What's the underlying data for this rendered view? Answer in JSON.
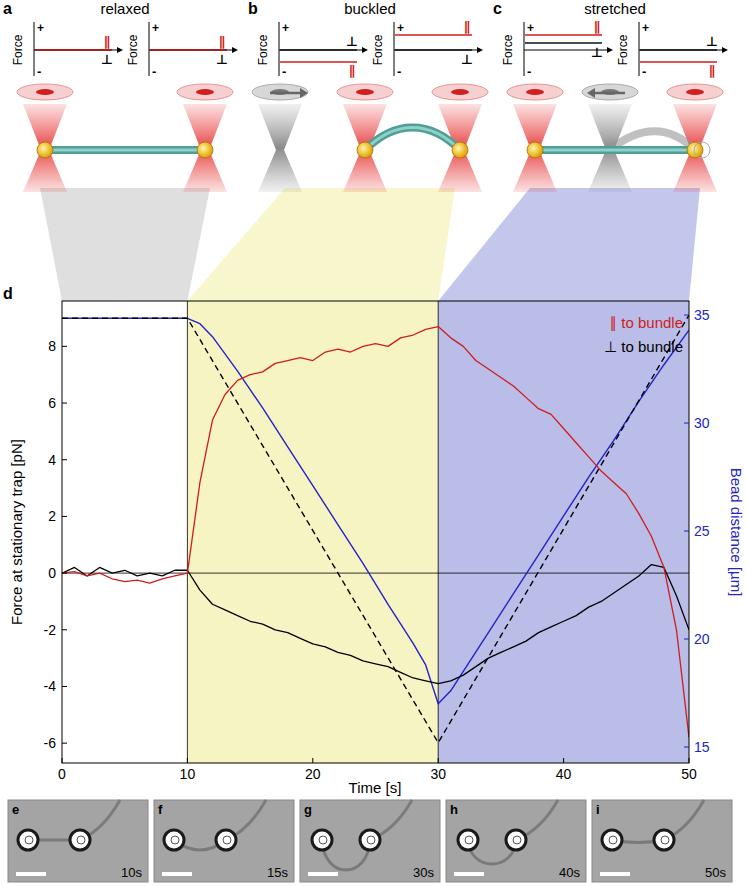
{
  "schematic": {
    "force_label": "Force",
    "plus": "+",
    "minus": "-",
    "par": "∥",
    "perp": "⊥",
    "panels": [
      {
        "letter": "a",
        "title": "relaxed",
        "color": "#d9d9d9"
      },
      {
        "letter": "b",
        "title": "buckled",
        "color": "#f7f4c4"
      },
      {
        "letter": "c",
        "title": "stretched",
        "color": "#b9bde8"
      }
    ]
  },
  "chart_data": {
    "type": "line",
    "letter": "d",
    "xlabel": "Time [s]",
    "ylabel": "Force at stationary trap [pN]",
    "y2label": "Bead distance [µm]",
    "xlim": [
      0,
      50
    ],
    "xticks": [
      0,
      10,
      20,
      30,
      40,
      50
    ],
    "ylim": [
      -6.7,
      9.6
    ],
    "yticks": [
      -6,
      -4,
      -2,
      0,
      2,
      4,
      6,
      8
    ],
    "y2lim": [
      14.26,
      35.65
    ],
    "y2ticks": [
      15,
      20,
      25,
      30,
      35
    ],
    "regions": [
      {
        "x": [
          10,
          30
        ],
        "color": "#f7f4c4"
      },
      {
        "x": [
          30,
          50
        ],
        "color": "#b9bde8"
      }
    ],
    "legend": "upper right",
    "series": [
      {
        "name": "∥ to bundle",
        "color": "#d01c1c",
        "line_style": "solid",
        "x": [
          0,
          1,
          2,
          3,
          4,
          5,
          6,
          7,
          8,
          9,
          10,
          11,
          12,
          13,
          14,
          15,
          16,
          17,
          18,
          19,
          20,
          21,
          22,
          23,
          24,
          25,
          26,
          27,
          28,
          29,
          30,
          31,
          32,
          33,
          34,
          35,
          36,
          37,
          38,
          39,
          40,
          41,
          42,
          43,
          44,
          45,
          46,
          47,
          48,
          49,
          50
        ],
        "values": [
          0,
          0.05,
          -0.1,
          0,
          -0.2,
          -0.3,
          -0.25,
          -0.35,
          -0.2,
          -0.1,
          0,
          3.2,
          5.4,
          6.3,
          6.8,
          7.0,
          7.1,
          7.4,
          7.5,
          7.6,
          7.5,
          7.8,
          7.9,
          7.8,
          8.0,
          8.1,
          8.0,
          8.3,
          8.4,
          8.6,
          8.7,
          8.3,
          8.0,
          7.5,
          7.2,
          6.9,
          6.6,
          6.2,
          5.8,
          5.6,
          5.1,
          4.6,
          4.1,
          3.6,
          3.2,
          2.8,
          2.1,
          1.3,
          0.2,
          -2.0,
          -5.8
        ]
      },
      {
        "name": "⊥ to bundle",
        "color": "#000000",
        "line_style": "solid",
        "x": [
          0,
          1,
          2,
          3,
          4,
          5,
          6,
          7,
          8,
          9,
          10,
          11,
          12,
          13,
          14,
          15,
          16,
          17,
          18,
          19,
          20,
          21,
          22,
          23,
          24,
          25,
          26,
          27,
          28,
          29,
          30,
          31,
          32,
          33,
          34,
          35,
          36,
          37,
          38,
          39,
          40,
          41,
          42,
          43,
          44,
          45,
          46,
          47,
          48,
          49,
          50
        ],
        "values": [
          0,
          0.2,
          -0.1,
          0.2,
          0,
          0.1,
          -0.1,
          0,
          -0.1,
          0.1,
          0.1,
          -0.6,
          -1.1,
          -1.3,
          -1.5,
          -1.7,
          -1.8,
          -2.0,
          -2.1,
          -2.3,
          -2.5,
          -2.6,
          -2.8,
          -2.9,
          -3.1,
          -3.2,
          -3.3,
          -3.5,
          -3.7,
          -3.8,
          -3.9,
          -3.8,
          -3.6,
          -3.3,
          -3.0,
          -2.8,
          -2.6,
          -2.4,
          -2.1,
          -1.9,
          -1.7,
          -1.5,
          -1.2,
          -1.0,
          -0.7,
          -0.4,
          -0.1,
          0.3,
          0.2,
          -0.8,
          -2.0
        ]
      },
      {
        "color": "#2323c8",
        "axis": "y2",
        "line_style": "solid",
        "x": [
          0,
          10,
          11,
          12,
          14,
          16,
          18,
          20,
          22,
          24,
          26,
          28,
          29,
          30,
          31,
          32,
          34,
          36,
          38,
          40,
          42,
          44,
          46,
          48,
          50
        ],
        "values": [
          34.85,
          34.85,
          34.6,
          34.0,
          32.4,
          30.7,
          28.9,
          27.1,
          25.3,
          23.5,
          21.6,
          19.8,
          18.8,
          17.0,
          17.6,
          18.5,
          20.3,
          22.1,
          23.9,
          25.7,
          27.5,
          29.2,
          31.0,
          32.7,
          34.3
        ]
      },
      {
        "color": "#000000",
        "axis": "y2",
        "line_style": "dashed",
        "x": [
          0,
          10,
          30,
          50
        ],
        "values": [
          34.85,
          34.85,
          15.2,
          35.0
        ]
      }
    ]
  },
  "images": [
    {
      "letter": "e",
      "label": "10s"
    },
    {
      "letter": "f",
      "label": "15s"
    },
    {
      "letter": "g",
      "label": "30s"
    },
    {
      "letter": "h",
      "label": "40s"
    },
    {
      "letter": "i",
      "label": "50s"
    }
  ]
}
